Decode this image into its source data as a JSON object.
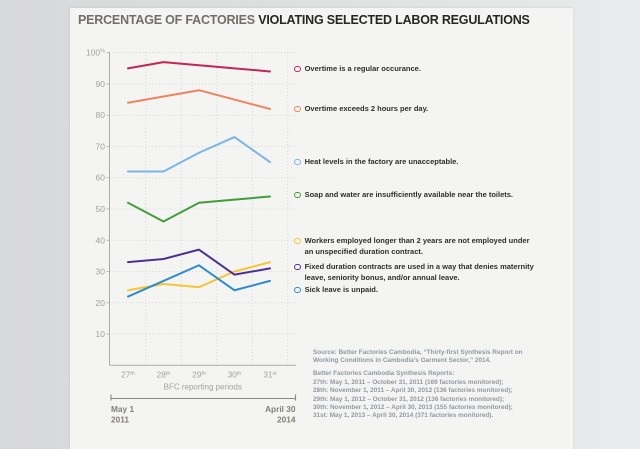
{
  "title": {
    "prefix": "PERCENTAGE OF FACTORIES ",
    "emphasis": "VIOLATING SELECTED LABOR REGULATIONS"
  },
  "chart_data": {
    "type": "line",
    "categories": [
      "27th",
      "28th",
      "29th",
      "30th",
      "31st"
    ],
    "xlabel": "BFC reporting periods",
    "ylabel": "",
    "ylim": [
      0,
      100
    ],
    "yticks": [
      100,
      90,
      80,
      70,
      60,
      50,
      40,
      30,
      20,
      10
    ],
    "ytick_top_suffix": "%",
    "grid": true,
    "legend_position": "right",
    "series": [
      {
        "name": "Overtime is a regular occurance.",
        "color": "#c5245a",
        "values": [
          95,
          97,
          96,
          95,
          94
        ]
      },
      {
        "name": "Overtime exceeds 2 hours per day.",
        "color": "#f0835e",
        "values": [
          84,
          86,
          88,
          85,
          82
        ]
      },
      {
        "name": "Heat levels in the factory are unacceptable.",
        "color": "#7ab5e5",
        "values": [
          62,
          62,
          68,
          73,
          65
        ]
      },
      {
        "name": "Soap and water are insufficiently available near the toilets.",
        "color": "#429e3c",
        "values": [
          52,
          46,
          52,
          53,
          54
        ]
      },
      {
        "name": "Workers employed longer than 2 years are not employed under an unspecified duration contract.",
        "color": "#f6c535",
        "values": [
          24,
          26,
          25,
          30,
          33
        ]
      },
      {
        "name": "Fixed duration contracts are used in a way that denies maternity leave, seniority bonus, and/or annual leave.",
        "color": "#4c3192",
        "values": [
          33,
          34,
          37,
          29,
          31
        ]
      },
      {
        "name": "Sick leave is unpaid.",
        "color": "#2e8bd0",
        "values": [
          22,
          27,
          32,
          24,
          27
        ]
      }
    ],
    "timeline": {
      "start_line1": "May 1",
      "start_line2": "2011",
      "end_line1": "April 30",
      "end_line2": "2014"
    }
  },
  "source": {
    "para1_lines": [
      "Source: Better Factories Cambodia, “Thirty-first Synthesis Report on",
      "Working Conditions in Cambodia’s Garment Sector,” 2014."
    ],
    "para2_lines": [
      "Better Factories Cambodia Synthesis Reports:",
      "27th: May 1, 2011 – October 31, 2011 (169 factories monitored);",
      "28th: November 1, 2011 – April 30, 2012 (136 factories monitored);",
      "29th: May 1, 2012 – October 31, 2012 (136 factories monitored);",
      "30th: November 1, 2012 –  April 30, 2013 (155 factories monitored);",
      "31st: May 1, 2013 – April 30, 2014 (371 factories monitored)."
    ]
  }
}
